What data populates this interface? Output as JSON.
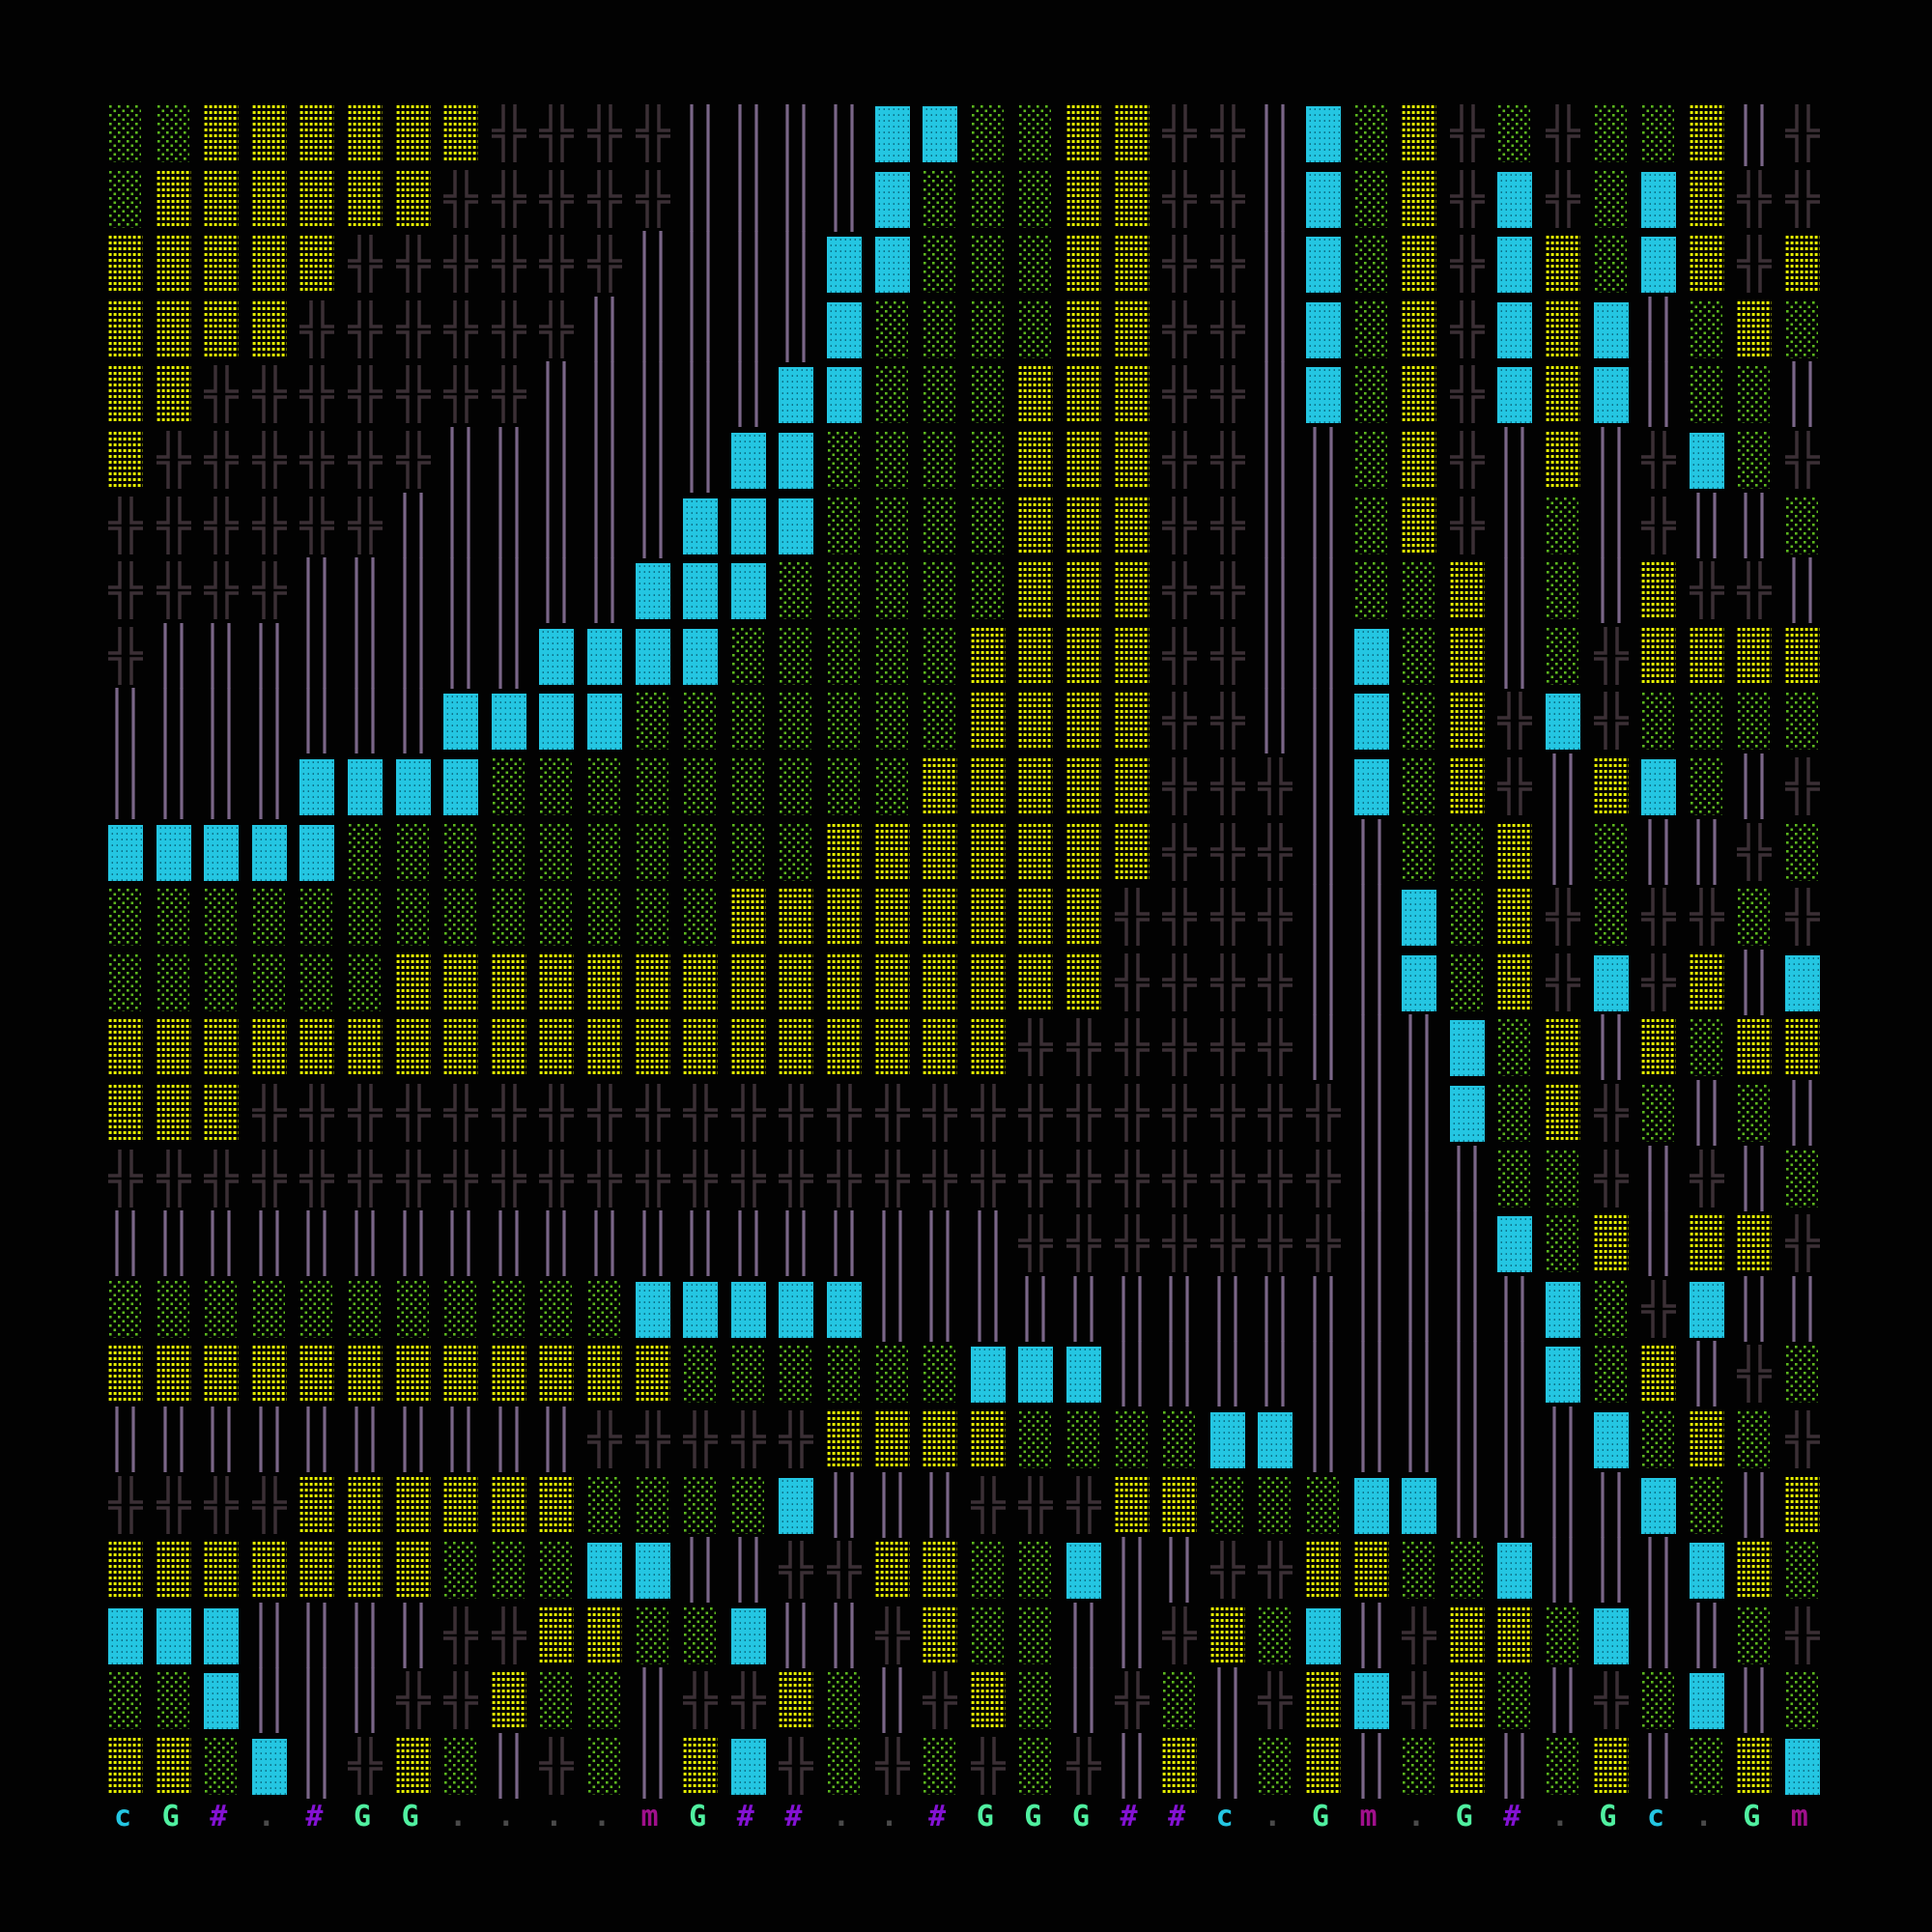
{
  "colors": {
    "background": "#020202",
    "sparse_green": "#5cb81e",
    "dense_yellow": "#e6f000",
    "cyan_block": "#24c6e2",
    "cross_wall": "#3b2f35",
    "bar_wall": "#7a6688",
    "status_bars": "#50f0a0",
    "status_hash": "#8412d4",
    "status_tick": "#a0108c"
  },
  "legend": {
    "g": "sparse-green-dots-icon",
    "y": "dense-yellow-dots-icon",
    "c": "cyan-block-icon",
    "x": "double-cross-icon",
    "v": "double-vertical-bar-icon",
    "G": "green-double-bar-icon",
    "#": "purple-hash-icon",
    "m": "magenta-tick-icon",
    ".": "empty"
  },
  "map": {
    "rows": [
      "ggyyyyyyxxxxvvvvccggyyxxvcgyxgxggyvx",
      "gyyyyyyxxxxxvvvvcgggyyxxvcgyxcxgcyxx",
      "yyyyyxxxxxxvvvvccgggyyxxvcgyxcygcyxy",
      "yyyyxxxxxxvvvvvcggggyyxxvcgyxcycvgyg",
      "yyxxxxxxxvvvvvccgggyyyxxvcgyxcycvggv",
      "yxxxxxxvvvvvvccggggyyyxxvvgyxvyvxcgx",
      "xxxxxxvvvvvvcccggggyyyxxvvgyxvgvxvvg",
      "xxxxvvvvvvvcccgggggyyyxxvvggyvgvyxxv",
      "xvvvvvvvvccccgggggyyyyxxvvcgyvgxyyyy",
      "vvvvvvvccccgggggggyyyyxxvvcgyxcxgggg",
      "vvvvccccgggggggggyyyyyxxxvcgyxvycgvx",
      "cccccggggggggggyyyyyyyxxxvvggyvgvvxg",
      "gggggggggggggyyyyyyyyxxxxvvcgyxgxxgx",
      "ggggggyyyyyyyyyyyyyyyxxxxvvcgyxcxyvc",
      "yyyyyyyyyyyyyyyyyyyxxxxxxvvvcgyvygyy",
      "yyyxxxxxxxxxxxxxxxxxxxxxxxvvcgyxgvgv",
      "xxxxxxxxxxxxxxxxxxxxxxxxxxvvvggxvxvg",
      "vvvvvvvvvvvvvvvvvvvxxxxxxxvvvcgyvyyx",
      "gggggggggggcccccvvvvvvvvvvvvvvcgxcvv",
      "yyyyyyyyyyyyggggggcccvvvvvvvvvcgyvxg",
      "vvvvvvvvvvxxxxxyyyyggggccvvvvvvcgygx",
      "xxxxyyyyyyggggcvvvxxxyygggccvvvvcgvy",
      "yyyyyyygggccvvxxyyggcvvxxyyggcvvvcyg",
      "cccvvvvxxyyggcvvxyggvvxygcvxyygcvvgx",
      "ggcvvvxxyggvxxygvxygvxgvxycxygvxgcvg",
      "yygcvxygvxgvycxgxgxgxvyvgyvgyvgyvgyc"
    ],
    "status_row": "cG#.#GG....mG##..#GGG##c.Gm.G#.Gc.Gm"
  }
}
